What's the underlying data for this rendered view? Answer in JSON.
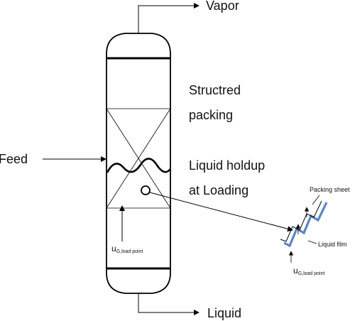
{
  "labels": {
    "vapor": "Vapor",
    "feed": "Feed",
    "liquid": "Liquid",
    "structured_packing_line1": "Structred",
    "structured_packing_line2": "packing",
    "holdup_line1": "Liquid holdup",
    "holdup_line2": "at Loading",
    "packing_sheet": "Packing sheet",
    "liquid_film": "Liquid film",
    "u_main": "u",
    "u_sub": "G,load point",
    "u_inset_main": "u",
    "u_inset_sub": "G,load point"
  },
  "colors": {
    "line": "#000000",
    "packing_sheet": "#5b86c4"
  }
}
